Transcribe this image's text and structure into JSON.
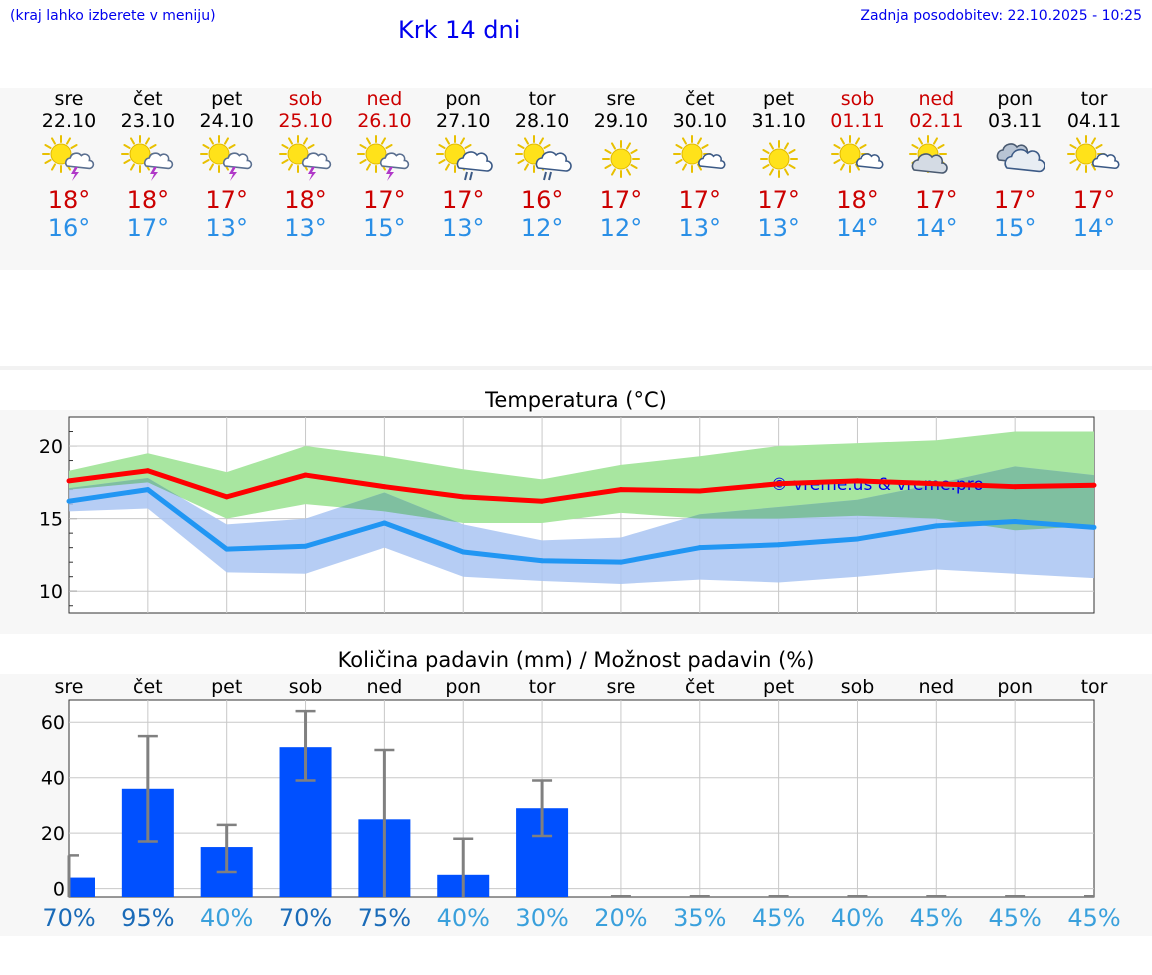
{
  "header": {
    "note": "(kraj lahko izberete v meniju)",
    "title": "Krk 14 dni",
    "updated": "Zadnja posodobitev: 22.10.2025 - 10:25"
  },
  "colors": {
    "max": "#ff0000",
    "min": "#2196f3",
    "max_band": "#a8e6a0",
    "min_band": "#a9c4f2",
    "overlap": "#7fbfa0",
    "bars": "#0050ff",
    "weekend": "#cc0000"
  },
  "days": [
    {
      "name": "sre",
      "date": "22.10",
      "weekend": false,
      "icon": "sun-cloud-thunder-icon",
      "tmax": "18°",
      "tmin": "16°"
    },
    {
      "name": "čet",
      "date": "23.10",
      "weekend": false,
      "icon": "sun-cloud-thunder-icon",
      "tmax": "18°",
      "tmin": "17°"
    },
    {
      "name": "pet",
      "date": "24.10",
      "weekend": false,
      "icon": "sun-cloud-thunder-icon",
      "tmax": "17°",
      "tmin": "13°"
    },
    {
      "name": "sob",
      "date": "25.10",
      "weekend": true,
      "icon": "sun-cloud-thunder-icon",
      "tmax": "18°",
      "tmin": "13°"
    },
    {
      "name": "ned",
      "date": "26.10",
      "weekend": true,
      "icon": "sun-cloud-thunder-icon",
      "tmax": "17°",
      "tmin": "15°"
    },
    {
      "name": "pon",
      "date": "27.10",
      "weekend": false,
      "icon": "sun-cloud-rain-icon",
      "tmax": "17°",
      "tmin": "13°"
    },
    {
      "name": "tor",
      "date": "28.10",
      "weekend": false,
      "icon": "sun-cloud-rain-icon",
      "tmax": "16°",
      "tmin": "12°"
    },
    {
      "name": "sre",
      "date": "29.10",
      "weekend": false,
      "icon": "sun-icon",
      "tmax": "17°",
      "tmin": "12°"
    },
    {
      "name": "čet",
      "date": "30.10",
      "weekend": false,
      "icon": "sun-small-cloud-icon",
      "tmax": "17°",
      "tmin": "13°"
    },
    {
      "name": "pet",
      "date": "31.10",
      "weekend": false,
      "icon": "sun-icon",
      "tmax": "17°",
      "tmin": "13°"
    },
    {
      "name": "sob",
      "date": "01.11",
      "weekend": true,
      "icon": "sun-small-cloud-icon",
      "tmax": "18°",
      "tmin": "14°"
    },
    {
      "name": "ned",
      "date": "02.11",
      "weekend": true,
      "icon": "sun-cloud-icon",
      "tmax": "17°",
      "tmin": "14°"
    },
    {
      "name": "pon",
      "date": "03.11",
      "weekend": false,
      "icon": "cloudy-icon",
      "tmax": "17°",
      "tmin": "15°"
    },
    {
      "name": "tor",
      "date": "04.11",
      "weekend": false,
      "icon": "sun-small-cloud-icon",
      "tmax": "17°",
      "tmin": "14°"
    }
  ],
  "chart_data": [
    {
      "type": "line",
      "title": "Temperatura (°C)",
      "watermark": "© vreme.us & vreme.pro",
      "x": [
        0,
        1,
        2,
        3,
        4,
        5,
        6,
        7,
        8,
        9,
        10,
        11,
        12,
        13
      ],
      "ylim": [
        8.5,
        22
      ],
      "yticks": [
        10,
        15,
        20
      ],
      "grid": true,
      "series": [
        {
          "role": "max",
          "values": [
            17.6,
            18.3,
            16.5,
            18.0,
            17.2,
            16.5,
            16.2,
            17.0,
            16.9,
            17.4,
            17.6,
            17.4,
            17.2,
            17.3
          ]
        },
        {
          "role": "min",
          "values": [
            16.2,
            17.0,
            12.9,
            13.1,
            14.7,
            12.7,
            12.1,
            12.0,
            13.0,
            13.2,
            13.6,
            14.5,
            14.8,
            14.4
          ]
        }
      ],
      "bands": [
        {
          "role": "max",
          "low": [
            17.0,
            17.5,
            15.0,
            16.0,
            15.5,
            14.7,
            14.7,
            15.4,
            15.0,
            15.0,
            15.2,
            15.0,
            14.2,
            14.5
          ],
          "high": [
            18.3,
            19.5,
            18.2,
            20.0,
            19.3,
            18.4,
            17.7,
            18.7,
            19.3,
            20.0,
            20.2,
            20.4,
            21.0,
            21.0
          ]
        },
        {
          "role": "min",
          "low": [
            15.5,
            15.7,
            11.3,
            11.2,
            13.0,
            11.0,
            10.7,
            10.5,
            10.8,
            10.6,
            11.0,
            11.5,
            11.2,
            10.9
          ],
          "high": [
            17.1,
            17.8,
            14.6,
            15.0,
            16.8,
            14.6,
            13.5,
            13.7,
            15.3,
            15.8,
            16.3,
            17.4,
            18.6,
            18.0
          ]
        }
      ]
    },
    {
      "type": "bar",
      "title": "Količina padavin (mm) / Možnost padavin (%)",
      "categories": [
        "sre",
        "čet",
        "pet",
        "sob",
        "ned",
        "pon",
        "tor",
        "sre",
        "čet",
        "pet",
        "sob",
        "ned",
        "pon",
        "tor"
      ],
      "values": [
        4,
        36,
        15,
        51,
        25,
        5,
        29,
        0,
        0,
        0,
        0,
        0,
        0,
        0
      ],
      "err_low": [
        0,
        17,
        6,
        39,
        0,
        0,
        19,
        0,
        0,
        0,
        0,
        0,
        0,
        0
      ],
      "err_high": [
        12,
        55,
        23,
        64,
        50,
        18,
        39,
        0,
        0,
        0,
        0,
        0,
        0,
        0
      ],
      "ylim": [
        -3,
        68
      ],
      "yticks": [
        0,
        20,
        40,
        60
      ],
      "probabilities": [
        "70%",
        "95%",
        "40%",
        "70%",
        "75%",
        "40%",
        "30%",
        "20%",
        "35%",
        "45%",
        "40%",
        "45%",
        "45%",
        "45%"
      ],
      "grid": true
    }
  ]
}
